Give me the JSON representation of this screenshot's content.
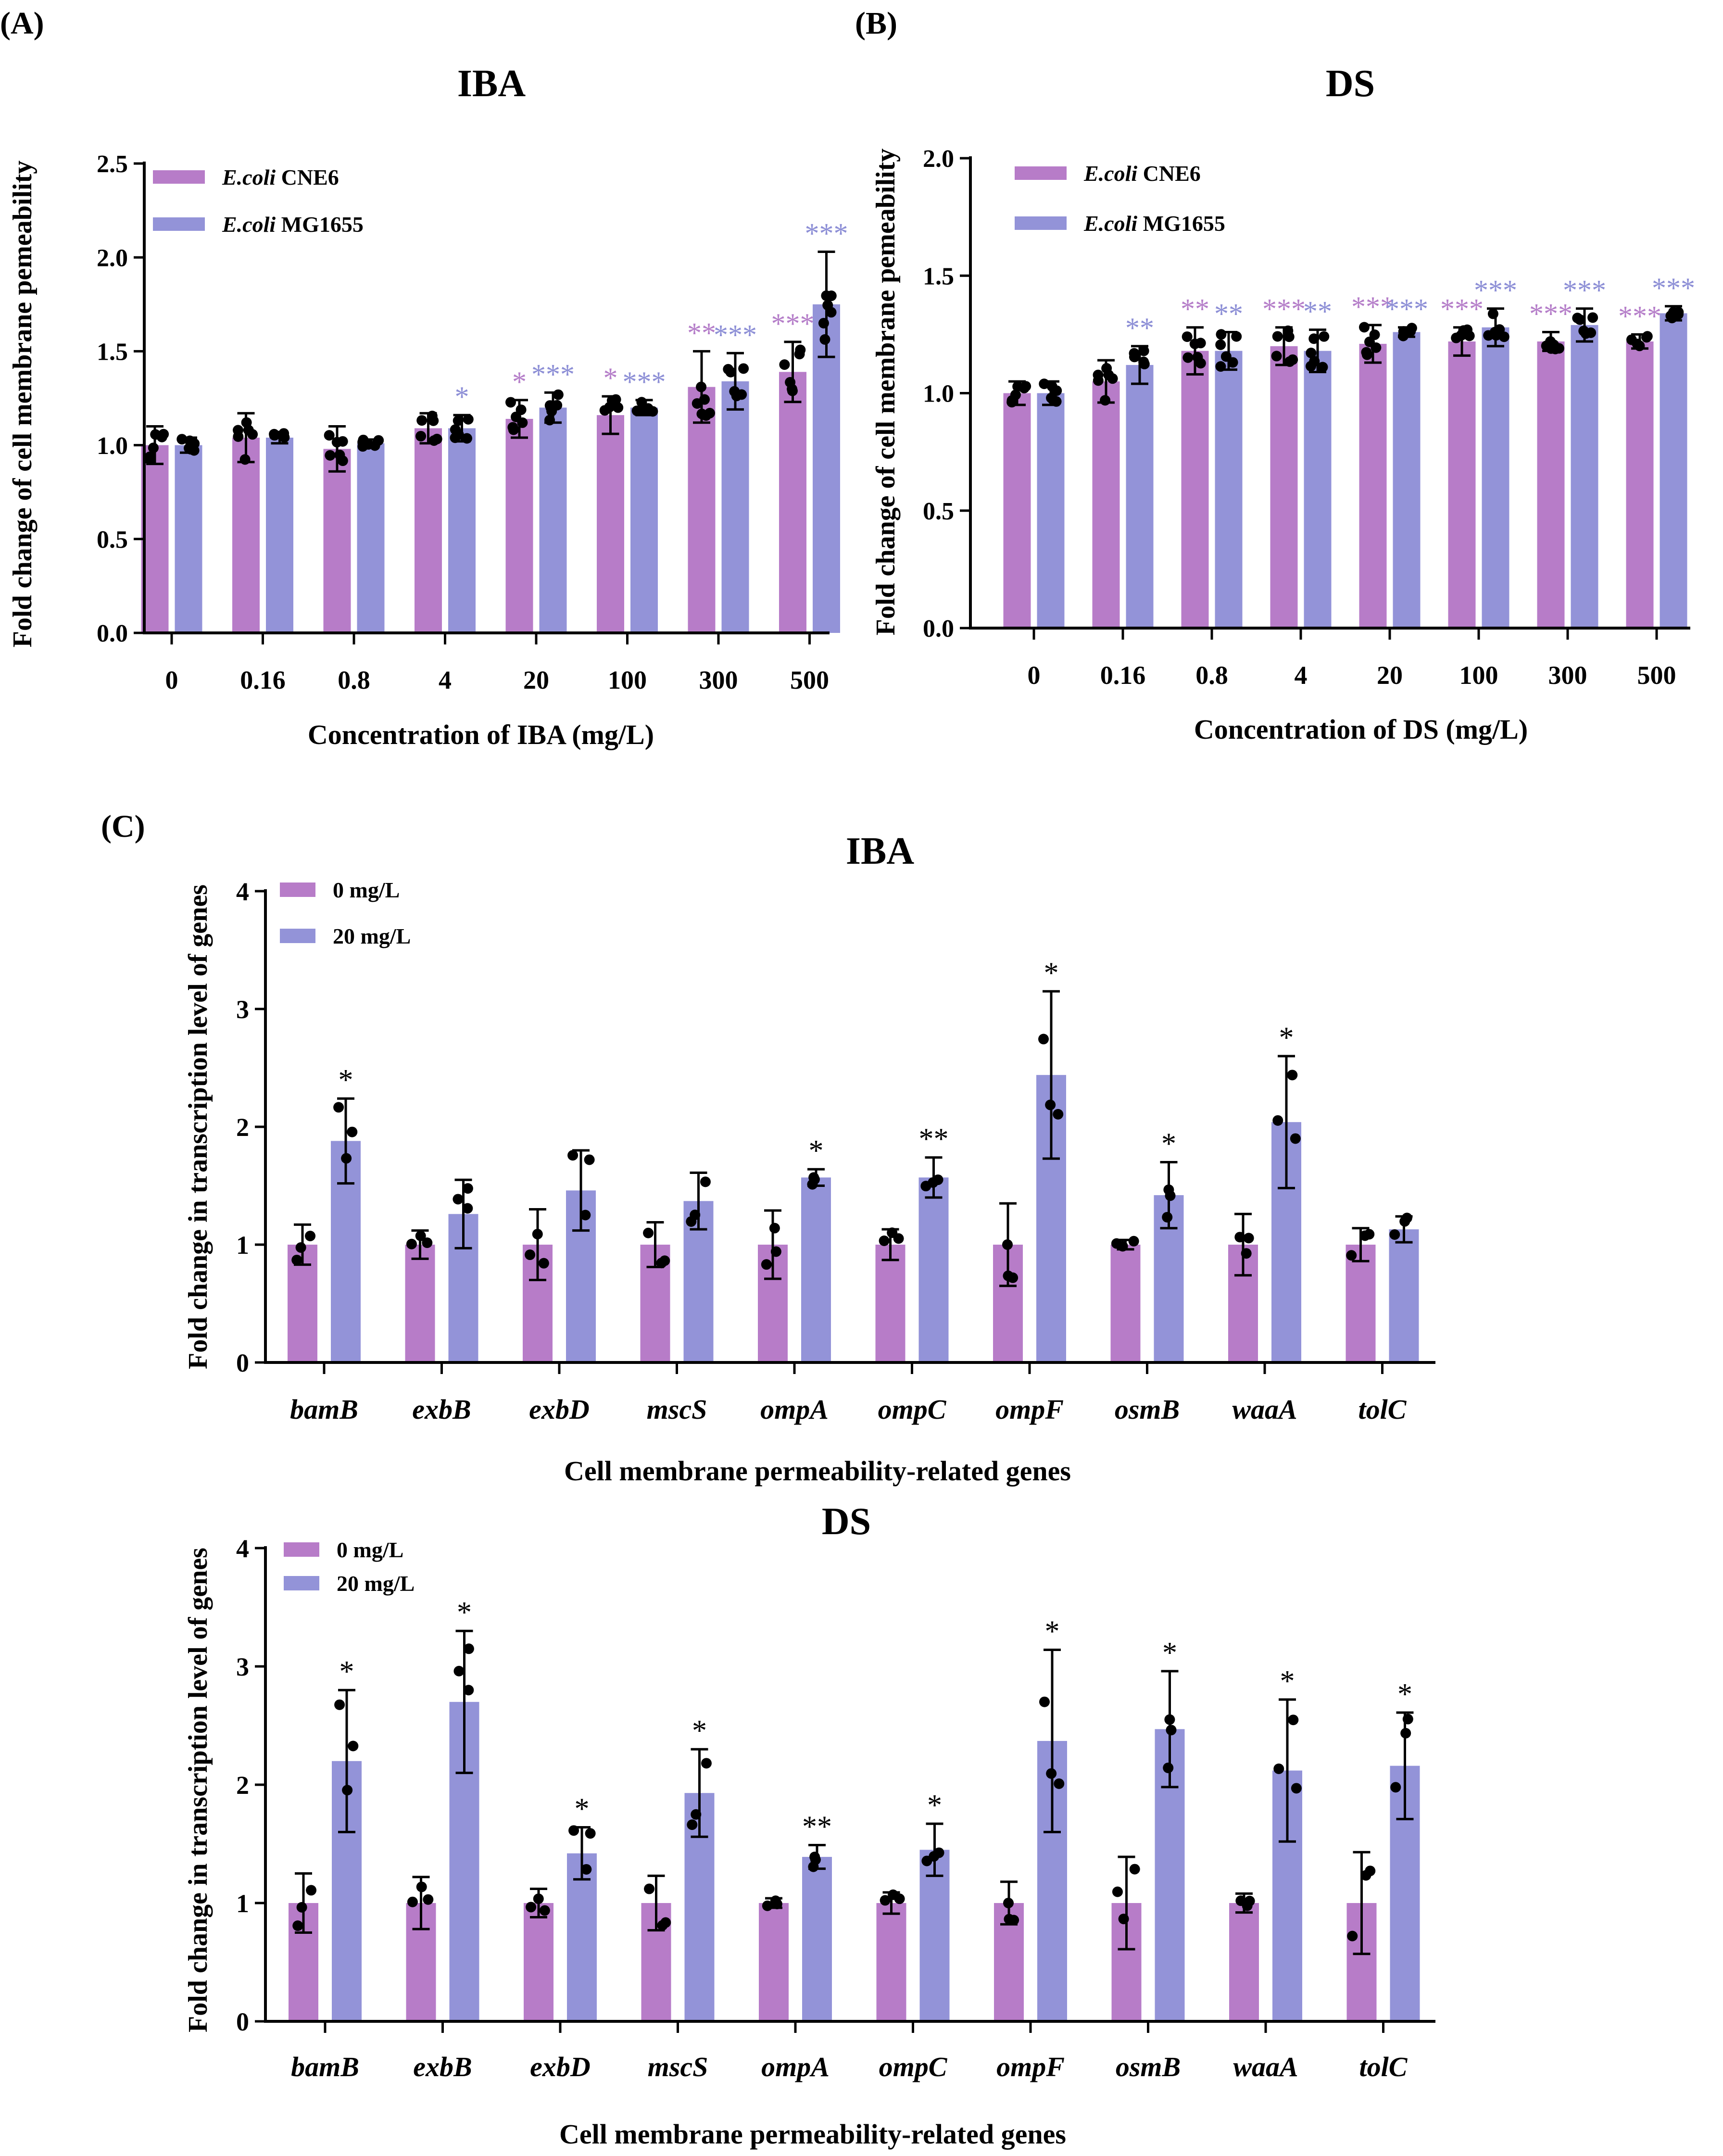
{
  "colors": {
    "cne6": "#b77cc8",
    "mg": "#9393d8",
    "star_cne6": "#b57ec9",
    "star_mg": "#8d8fd6",
    "ink": "#000000"
  },
  "panel_labels": [
    "(A)",
    "(B)",
    "(C)"
  ],
  "chart_data": [
    {
      "id": "A",
      "type": "bar",
      "title": "IBA",
      "xlabel": "Concentration of IBA (mg/L)",
      "ylabel": "Fold change of cell membrane pemeability",
      "ylim": [
        0,
        2.5
      ],
      "yticks": [
        "0.0",
        "0.5",
        "1.0",
        "1.5",
        "2.0",
        "2.5"
      ],
      "categories": [
        "0",
        "0.16",
        "0.8",
        "4",
        "20",
        "100",
        "300",
        "500"
      ],
      "legend": [
        {
          "italic": "E.coli",
          "rest": " CNE6"
        },
        {
          "italic": "E.coli",
          "rest": " MG1655"
        }
      ],
      "series": [
        {
          "name": "E.coli CNE6",
          "values": [
            1.0,
            1.04,
            0.98,
            1.09,
            1.14,
            1.16,
            1.31,
            1.39
          ],
          "err": [
            0.1,
            0.13,
            0.12,
            0.08,
            0.1,
            0.1,
            0.19,
            0.16
          ],
          "sig": [
            "",
            "",
            "",
            "",
            "*",
            "*",
            "**",
            "***"
          ]
        },
        {
          "name": "E.coli MG1655",
          "values": [
            1.0,
            1.04,
            1.01,
            1.09,
            1.2,
            1.2,
            1.34,
            1.75
          ],
          "err": [
            0.04,
            0.03,
            0.02,
            0.07,
            0.08,
            0.04,
            0.15,
            0.28
          ],
          "sig": [
            "",
            "",
            "",
            "*",
            "***",
            "***",
            "***",
            "***"
          ]
        }
      ]
    },
    {
      "id": "B",
      "type": "bar",
      "title": "DS",
      "xlabel": "Concentration of  DS (mg/L)",
      "ylabel": "Fold change of cell membrane pemeability",
      "ylim": [
        0,
        2.0
      ],
      "yticks": [
        "0.0",
        "0.5",
        "1.0",
        "1.5",
        "2.0"
      ],
      "categories": [
        "0",
        "0.16",
        "0.8",
        "4",
        "20",
        "100",
        "300",
        "500"
      ],
      "legend": [
        {
          "italic": "E.coli",
          "rest": " CNE6"
        },
        {
          "italic": "E.coli",
          "rest": " MG1655"
        }
      ],
      "series": [
        {
          "name": "E.coli CNE6",
          "values": [
            1.0,
            1.05,
            1.18,
            1.2,
            1.21,
            1.22,
            1.22,
            1.22
          ],
          "err": [
            0.05,
            0.09,
            0.1,
            0.08,
            0.08,
            0.06,
            0.04,
            0.03
          ],
          "sig": [
            "",
            "",
            "**",
            "***",
            "***",
            "***",
            "***",
            "***"
          ]
        },
        {
          "name": "E.coli MG1655",
          "values": [
            1.0,
            1.12,
            1.18,
            1.18,
            1.26,
            1.28,
            1.29,
            1.34
          ],
          "err": [
            0.05,
            0.08,
            0.08,
            0.09,
            0.02,
            0.08,
            0.07,
            0.03
          ],
          "sig": [
            "",
            "**",
            "**",
            "**",
            "***",
            "***",
            "***",
            "***"
          ]
        }
      ]
    },
    {
      "id": "C1",
      "type": "bar",
      "title": "IBA",
      "xlabel": "Cell membrane permeability-related genes",
      "ylabel": "Fold change in transcription level of genes",
      "ylim": [
        0,
        4
      ],
      "yticks": [
        "0",
        "1",
        "2",
        "3",
        "4"
      ],
      "categories": [
        "bamB",
        "exbB",
        "exbD",
        "mscS",
        "ompA",
        "ompC",
        "ompF",
        "osmB",
        "waaA",
        "tolC"
      ],
      "legend": [
        {
          "italic": "",
          "rest": "0 mg/L"
        },
        {
          "italic": "",
          "rest": "20 mg/L"
        }
      ],
      "series": [
        {
          "name": "0 mg/L",
          "values": [
            1,
            1,
            1,
            1,
            1,
            1,
            1,
            1,
            1,
            1
          ],
          "err": [
            0.17,
            0.12,
            0.3,
            0.19,
            0.29,
            0.13,
            0.35,
            0.04,
            0.26,
            0.14
          ],
          "sig": [
            "",
            "",
            "",
            "",
            "",
            "",
            "",
            "",
            "",
            ""
          ]
        },
        {
          "name": "20 mg/L",
          "values": [
            1.88,
            1.26,
            1.46,
            1.37,
            1.57,
            1.57,
            2.44,
            1.42,
            2.04,
            1.13
          ],
          "err": [
            0.36,
            0.29,
            0.34,
            0.24,
            0.07,
            0.17,
            0.71,
            0.28,
            0.56,
            0.11
          ],
          "sig": [
            "*",
            "",
            "",
            "",
            "*",
            "**",
            "*",
            "*",
            "*",
            ""
          ]
        }
      ]
    },
    {
      "id": "C2",
      "type": "bar",
      "title": "DS",
      "xlabel": "Cell membrane permeability-related genes",
      "ylabel": "Fold change in transcription level of genes",
      "ylim": [
        0,
        4
      ],
      "yticks": [
        "0",
        "1",
        "2",
        "3",
        "4"
      ],
      "categories": [
        "bamB",
        "exbB",
        "exbD",
        "mscS",
        "ompA",
        "ompC",
        "ompF",
        "osmB",
        "waaA",
        "tolC"
      ],
      "legend": [
        {
          "italic": "",
          "rest": "0 mg/L"
        },
        {
          "italic": "",
          "rest": "20 mg/L"
        }
      ],
      "series": [
        {
          "name": "0 mg/L",
          "values": [
            1,
            1,
            1,
            1,
            1,
            1,
            1,
            1,
            1,
            1
          ],
          "err": [
            0.25,
            0.22,
            0.12,
            0.23,
            0.04,
            0.09,
            0.18,
            0.39,
            0.08,
            0.43
          ],
          "sig": [
            "",
            "",
            "",
            "",
            "",
            "",
            "",
            "",
            "",
            ""
          ]
        },
        {
          "name": "20 mg/L",
          "values": [
            2.2,
            2.7,
            1.42,
            1.93,
            1.39,
            1.45,
            2.37,
            2.47,
            2.12,
            2.16
          ],
          "err": [
            0.6,
            0.6,
            0.22,
            0.37,
            0.1,
            0.22,
            0.77,
            0.49,
            0.6,
            0.45
          ],
          "sig": [
            "*",
            "*",
            "*",
            "*",
            "**",
            "*",
            "*",
            "*",
            "*",
            "*"
          ]
        }
      ]
    }
  ]
}
